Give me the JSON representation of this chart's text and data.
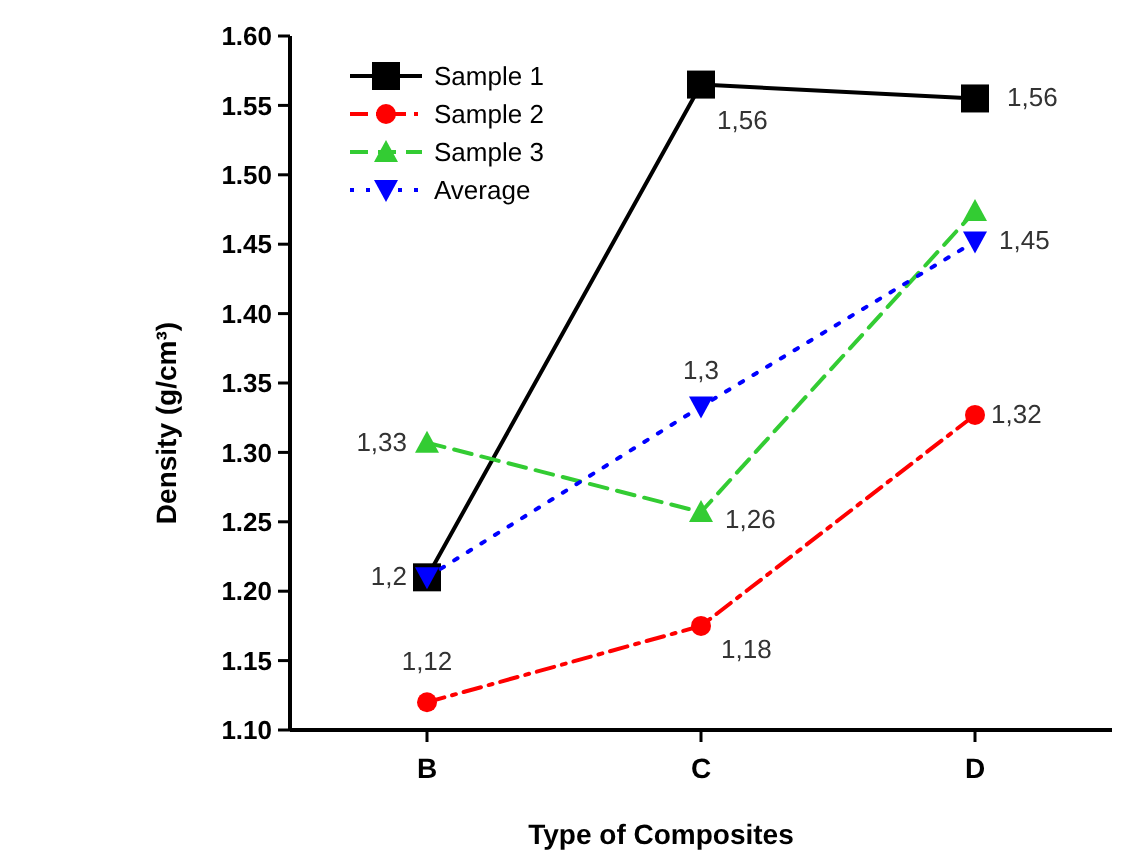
{
  "chart_data": {
    "type": "line",
    "xlabel": "Type of Composites",
    "ylabel": "Density (g/cm³)",
    "categories": [
      "B",
      "C",
      "D"
    ],
    "ylim": [
      1.1,
      1.6
    ],
    "yticks": [
      {
        "value": 1.1,
        "label": "1.10"
      },
      {
        "value": 1.15,
        "label": "1.15"
      },
      {
        "value": 1.2,
        "label": "1.20"
      },
      {
        "value": 1.25,
        "label": "1.25"
      },
      {
        "value": 1.3,
        "label": "1.30"
      },
      {
        "value": 1.35,
        "label": "1.35"
      },
      {
        "value": 1.4,
        "label": "1.40"
      },
      {
        "value": 1.45,
        "label": "1.45"
      },
      {
        "value": 1.5,
        "label": "1.50"
      },
      {
        "value": 1.55,
        "label": "1.55"
      },
      {
        "value": 1.6,
        "label": "1.60"
      }
    ],
    "legend": "top left",
    "series": [
      {
        "name": "Sample 1",
        "color": "#000000",
        "marker": "square",
        "line_style": "solid",
        "values": [
          1.21,
          1.565,
          1.555
        ]
      },
      {
        "name": "Sample 2",
        "color": "#ff0000",
        "marker": "circle",
        "line_style": "dashdot",
        "values": [
          1.12,
          1.175,
          1.327
        ]
      },
      {
        "name": "Sample 3",
        "color": "#33cc33",
        "marker": "triangle",
        "line_style": "dashed",
        "values": [
          1.307,
          1.257,
          1.474
        ]
      },
      {
        "name": "Average",
        "color": "#0000ff",
        "marker": "triangle-down",
        "line_style": "dotted",
        "values": [
          1.21,
          1.333,
          1.452
        ]
      }
    ],
    "annotations": [
      {
        "text": "1,56",
        "x": "C",
        "y": 1.565
      },
      {
        "text": "1,56",
        "x": "D",
        "y": 1.555
      },
      {
        "text": "1,12",
        "x": "B",
        "y": 1.12
      },
      {
        "text": "1,18",
        "x": "C",
        "y": 1.175
      },
      {
        "text": "1,32",
        "x": "D",
        "y": 1.327
      },
      {
        "text": "1,33",
        "x": "B",
        "y": 1.307
      },
      {
        "text": "1,26",
        "x": "C",
        "y": 1.257
      },
      {
        "text": "1,2",
        "x": "B",
        "y": 1.21
      },
      {
        "text": "1,3",
        "x": "C",
        "y": 1.333
      },
      {
        "text": "1,45",
        "x": "D",
        "y": 1.452
      }
    ]
  }
}
